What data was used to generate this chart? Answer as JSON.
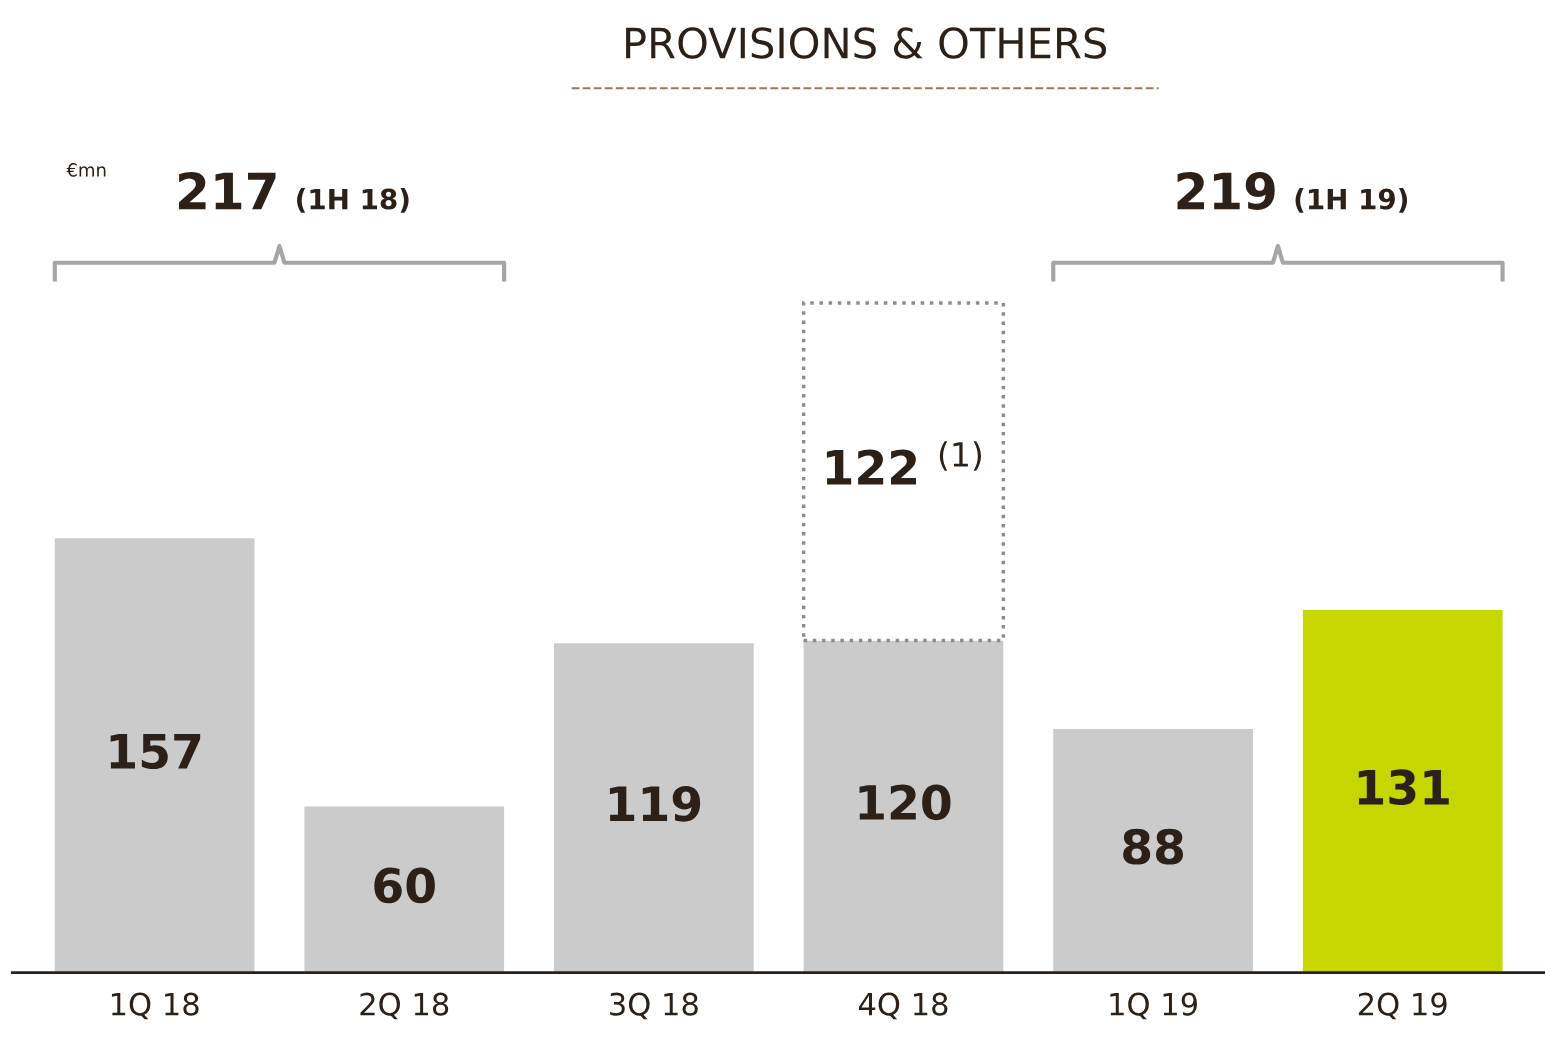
{
  "chart_data": {
    "type": "bar",
    "title": "PROVISIONS & OTHERS",
    "categories": [
      "1Q 18",
      "2Q 18",
      "3Q 18",
      "4Q 18",
      "1Q 19",
      "2Q 19"
    ],
    "stacked": true,
    "data_labels": true,
    "grid": false,
    "legend": false,
    "tick_labels": "x",
    "series": [
      {
        "colors": [
          "#cbcbcb",
          "#cbcbcb",
          "#cbcbcb",
          "#cbcbcb",
          "#cbcbcb",
          "#c5d600"
        ],
        "values": [
          157,
          60,
          119,
          120,
          88,
          131
        ]
      },
      {
        "color": "#8c8c8c",
        "line_style": "dotted",
        "values": [
          null,
          null,
          null,
          122,
          null,
          null
        ],
        "value_labels": [
          null,
          null,
          null,
          "122 $^{(1)}$",
          null,
          null
        ]
      }
    ],
    "annotations": [
      "€mn",
      "217 (1H 18)",
      "219 (1H 19)"
    ]
  }
}
